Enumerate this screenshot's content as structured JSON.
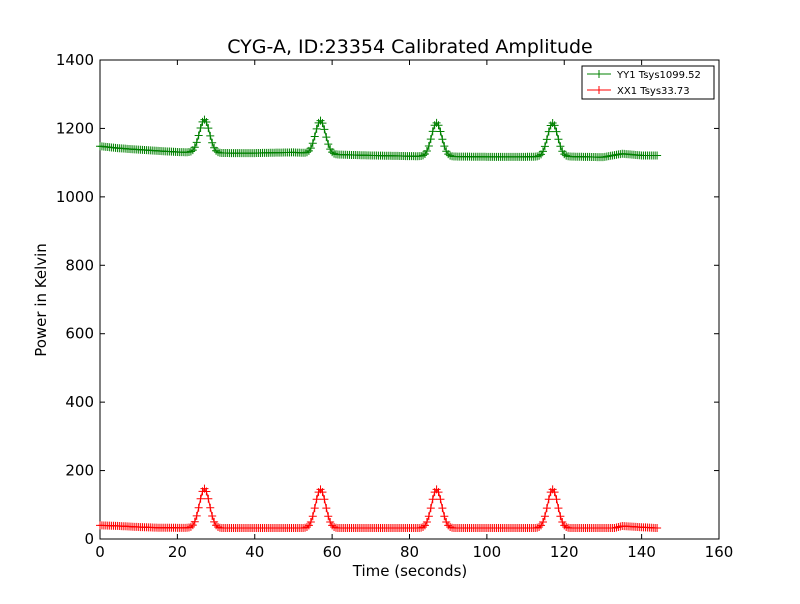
{
  "chart_data": {
    "type": "line",
    "title": "CYG-A, ID:23354 Calibrated Amplitude",
    "xlabel": "Time (seconds)",
    "ylabel": "Power in Kelvin",
    "xlim": [
      0,
      160
    ],
    "ylim": [
      0,
      1400
    ],
    "xticks": [
      0,
      20,
      40,
      60,
      80,
      100,
      120,
      140,
      160
    ],
    "yticks": [
      0,
      200,
      400,
      600,
      800,
      1000,
      1200,
      1400
    ],
    "grid": false,
    "legend_position": "top-right",
    "series": [
      {
        "name": "YY1 Tsys1099.52",
        "color": "#008000",
        "marker": "+",
        "baseline": [
          [
            0,
            1148
          ],
          [
            5,
            1142
          ],
          [
            10,
            1138
          ],
          [
            20,
            1131
          ],
          [
            30,
            1128
          ],
          [
            40,
            1128
          ],
          [
            50,
            1130
          ],
          [
            60,
            1124
          ],
          [
            70,
            1121
          ],
          [
            80,
            1119
          ],
          [
            90,
            1118
          ],
          [
            100,
            1117
          ],
          [
            110,
            1117
          ],
          [
            120,
            1118
          ],
          [
            130,
            1116
          ],
          [
            135,
            1126
          ],
          [
            140,
            1121
          ],
          [
            144,
            1121
          ]
        ],
        "peaks": [
          {
            "x": 27,
            "peak": 1228,
            "base": 1131
          },
          {
            "x": 57,
            "peak": 1225,
            "base": 1128
          },
          {
            "x": 87,
            "peak": 1218,
            "base": 1120
          },
          {
            "x": 117,
            "peak": 1215,
            "base": 1117
          }
        ]
      },
      {
        "name": "XX1 Tsys33.73",
        "color": "#ff0000",
        "marker": "+",
        "baseline": [
          [
            0,
            40
          ],
          [
            5,
            38
          ],
          [
            10,
            35
          ],
          [
            15,
            33
          ],
          [
            30,
            32
          ],
          [
            60,
            32
          ],
          [
            90,
            32
          ],
          [
            120,
            32
          ],
          [
            133,
            32
          ],
          [
            135,
            38
          ],
          [
            139,
            35
          ],
          [
            144,
            32
          ]
        ],
        "peaks": [
          {
            "x": 27,
            "peak": 147,
            "base": 32
          },
          {
            "x": 57,
            "peak": 145,
            "base": 32
          },
          {
            "x": 87,
            "peak": 145,
            "base": 32
          },
          {
            "x": 117,
            "peak": 145,
            "base": 32
          }
        ]
      }
    ]
  }
}
